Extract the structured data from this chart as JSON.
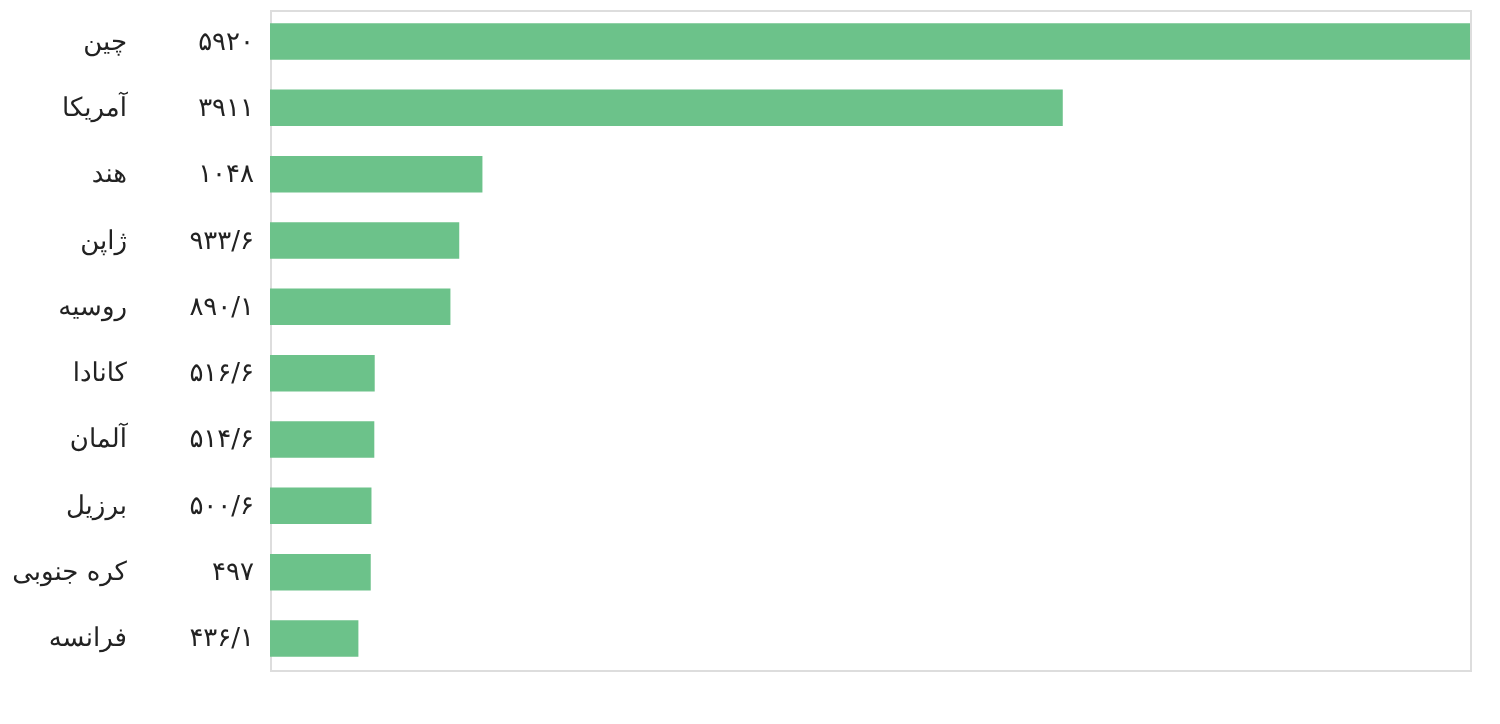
{
  "chart_data": {
    "type": "bar",
    "orientation": "horizontal",
    "categories": [
      "چین",
      "آمریکا",
      "هند",
      "ژاپن",
      "روسیه",
      "کانادا",
      "آلمان",
      "برزیل",
      "کره جنوبی",
      "فرانسه"
    ],
    "values": [
      5920,
      3911,
      1048,
      933.6,
      890.1,
      516.6,
      514.6,
      500.6,
      497,
      436.1
    ],
    "value_labels": [
      "۵۹۲۰",
      "۳۹۱۱",
      "۱۰۴۸",
      "۹۳۳/۶",
      "۸۹۰/۱",
      "۵۱۶/۶",
      "۵۱۴/۶",
      "۵۰۰/۶",
      "۴۹۷",
      "۴۳۶/۱"
    ],
    "color": "#6cc28a",
    "xlim": [
      0,
      5920
    ]
  }
}
